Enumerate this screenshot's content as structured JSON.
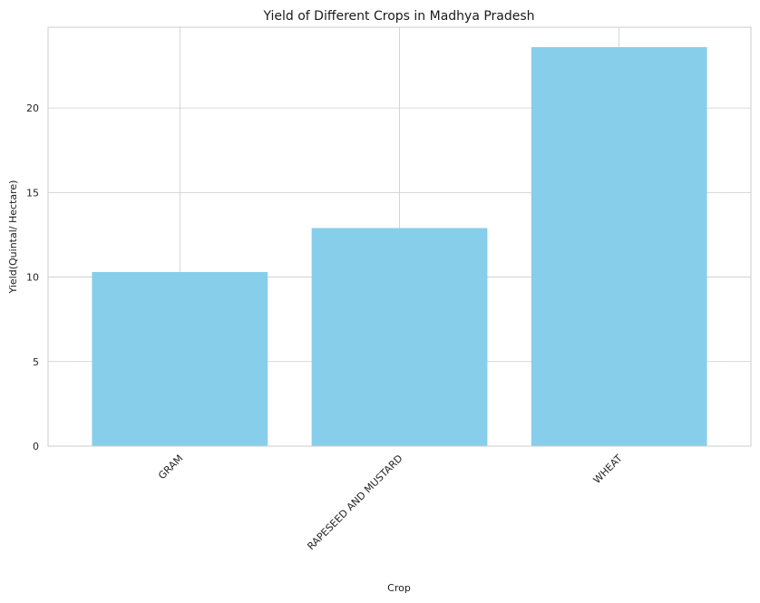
{
  "chart_data": {
    "type": "bar",
    "title": "Yield of Different Crops in Madhya Pradesh",
    "xlabel": "Crop",
    "ylabel": "Yield(Quintal/ Hectare)",
    "categories": [
      "GRAM",
      "RAPESEED AND MUSTARD",
      "WHEAT"
    ],
    "values": [
      10.3,
      12.9,
      23.6
    ],
    "ylim": [
      0,
      24.78
    ],
    "yticks": [
      0,
      5,
      10,
      15,
      20
    ],
    "grid": true,
    "bar_color": "#87CEEB",
    "xtick_rotation_deg": 45
  }
}
